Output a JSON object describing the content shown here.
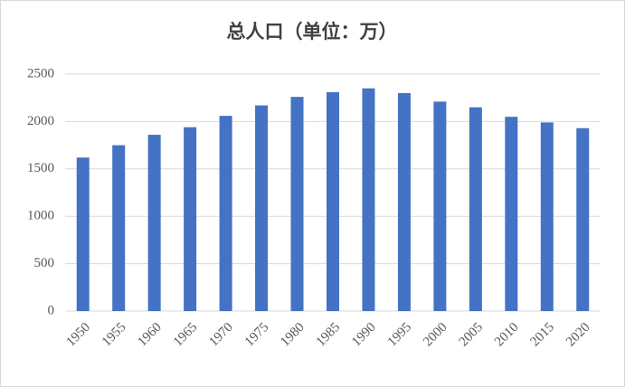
{
  "chart_data": {
    "type": "bar",
    "title": "总人口（单位：万）",
    "categories": [
      "1950",
      "1955",
      "1960",
      "1965",
      "1970",
      "1975",
      "1980",
      "1985",
      "1990",
      "1995",
      "2000",
      "2005",
      "2010",
      "2015",
      "2020"
    ],
    "values": [
      1620,
      1750,
      1860,
      1940,
      2060,
      2170,
      2260,
      2310,
      2350,
      2300,
      2210,
      2150,
      2050,
      1990,
      1930
    ],
    "color": "#4472c4",
    "ylim": [
      0,
      2500
    ],
    "yticks": [
      0,
      500,
      1000,
      1500,
      2000,
      2500
    ],
    "grid": true
  }
}
